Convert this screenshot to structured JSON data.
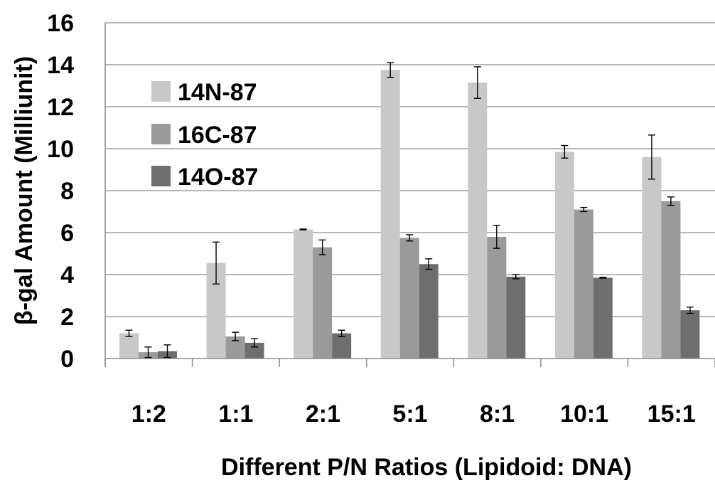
{
  "chart_data": {
    "type": "bar",
    "title": "",
    "xlabel": "Different P/N Ratios (Lipidoid: DNA)",
    "ylabel": "β-gal Amount (Milliunit)",
    "ylim": [
      0,
      16
    ],
    "yticks": [
      "0",
      "2",
      "4",
      "6",
      "8",
      "10",
      "12",
      "14",
      "16"
    ],
    "grid": true,
    "legend_position": "top-left",
    "categories": [
      "1:2",
      "1:1",
      "2:1",
      "5:1",
      "8:1",
      "10:1",
      "15:1"
    ],
    "series": [
      {
        "name": "14N-87",
        "color": "#c8c8c8",
        "values": [
          1.2,
          4.55,
          6.15,
          13.75,
          13.15,
          9.85,
          9.6
        ],
        "errors": [
          0.15,
          1.0,
          0.02,
          0.35,
          0.75,
          0.3,
          1.05
        ]
      },
      {
        "name": "16C-87",
        "color": "#9a9a9a",
        "values": [
          0.3,
          1.05,
          5.3,
          5.75,
          5.8,
          7.1,
          7.5
        ],
        "errors": [
          0.25,
          0.2,
          0.35,
          0.15,
          0.55,
          0.1,
          0.2
        ]
      },
      {
        "name": "14O-87",
        "color": "#6e6e6e",
        "values": [
          0.35,
          0.75,
          1.2,
          4.5,
          3.9,
          3.85,
          2.3
        ],
        "errors": [
          0.3,
          0.2,
          0.15,
          0.25,
          0.1,
          0.02,
          0.15
        ]
      }
    ]
  }
}
